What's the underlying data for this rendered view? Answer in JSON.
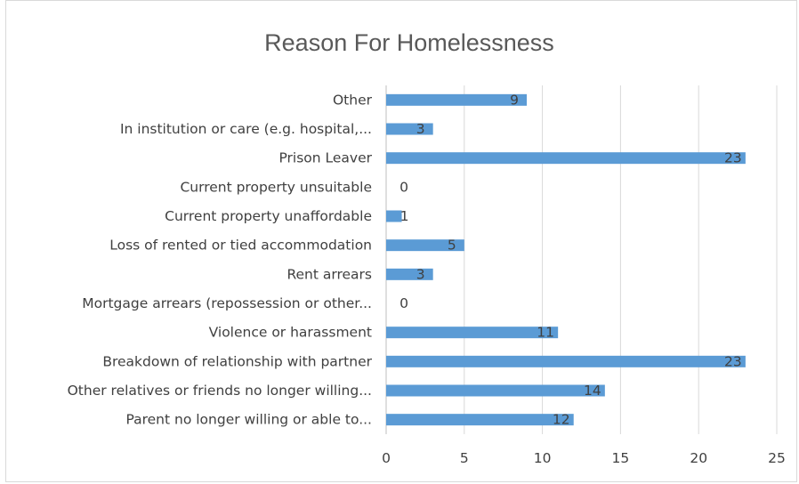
{
  "chart_data": {
    "type": "bar",
    "orientation": "horizontal",
    "title": "Reason For Homelessness",
    "categories": [
      "Other",
      "In institution or care (e.g. hospital,...",
      "Prison Leaver",
      "Current property unsuitable",
      "Current property unaffordable",
      "Loss of rented or tied accommodation",
      "Rent arrears",
      "Mortgage arrears (repossession or other...",
      "Violence or harassment",
      "Breakdown of relationship with partner",
      "Other relatives or friends no longer willing...",
      "Parent no longer willing or able to..."
    ],
    "values": [
      9,
      3,
      23,
      0,
      1,
      5,
      3,
      0,
      11,
      23,
      14,
      12
    ],
    "xlim": [
      0,
      25
    ],
    "xticks": [
      0,
      5,
      10,
      15,
      20,
      25
    ],
    "grid": true,
    "legend": "none",
    "data_labels": true,
    "bar_color": "#5b9bd5"
  }
}
